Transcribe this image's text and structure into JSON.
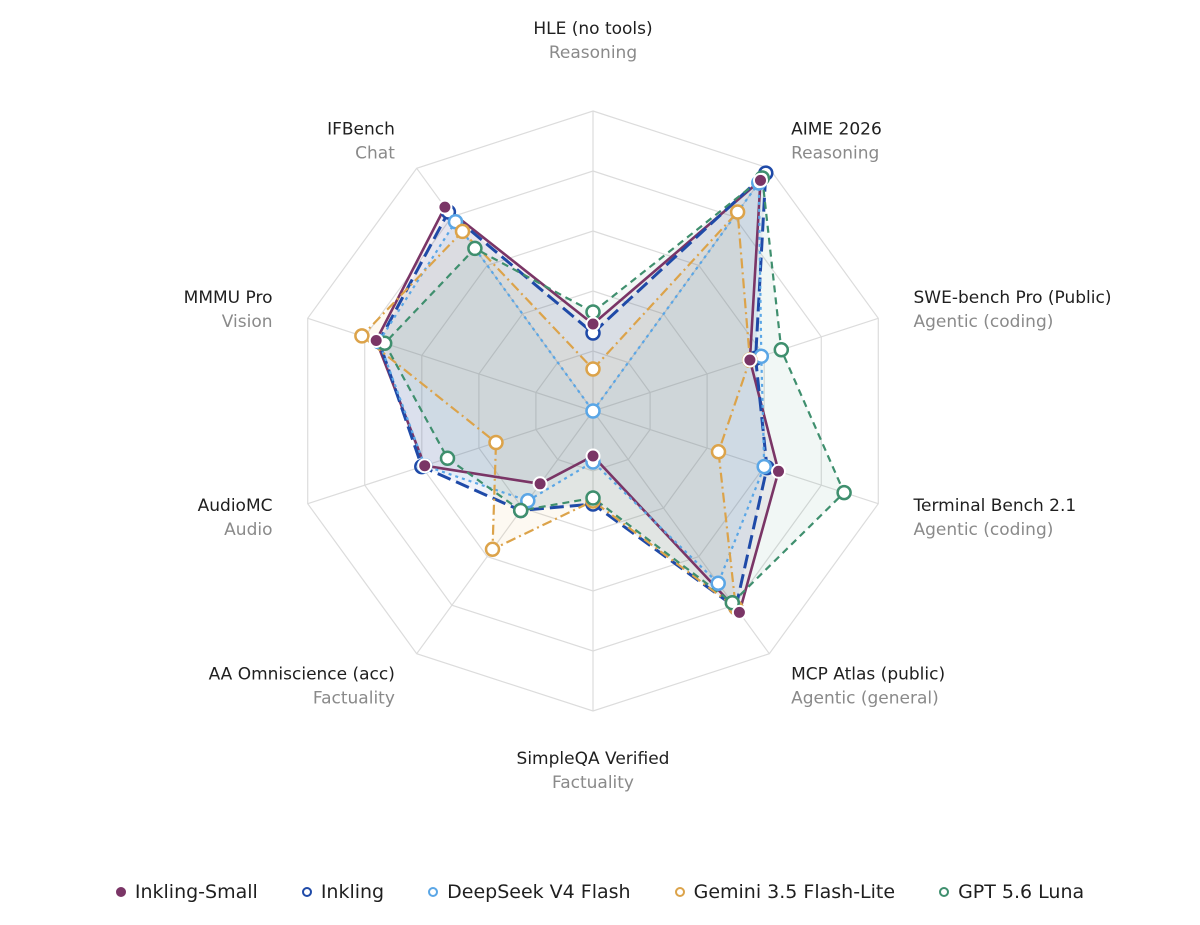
{
  "chart_data": {
    "type": "radar",
    "range": [
      0,
      100
    ],
    "grid": true,
    "legend_position": "bottom",
    "axes": [
      {
        "name": "HLE (no tools)",
        "category": "Reasoning"
      },
      {
        "name": "AIME 2026",
        "category": "Reasoning"
      },
      {
        "name": "SWE-bench Pro (Public)",
        "category": "Agentic (coding)"
      },
      {
        "name": "Terminal Bench 2.1",
        "category": "Agentic (coding)"
      },
      {
        "name": "MCP Atlas (public)",
        "category": "Agentic (general)"
      },
      {
        "name": "SimpleQA Verified",
        "category": "Factuality"
      },
      {
        "name": "AA Omniscience (acc)",
        "category": "Factuality"
      },
      {
        "name": "AudioMC",
        "category": "Audio"
      },
      {
        "name": "MMMU Pro",
        "category": "Vision"
      },
      {
        "name": "IFBench",
        "category": "Chat"
      }
    ],
    "series": [
      {
        "name": "Inkling-Small",
        "color": "#7a3566",
        "style": "solid",
        "marker": "filled",
        "values": [
          29,
          95,
          55,
          65,
          83,
          15,
          30,
          59,
          76,
          84
        ]
      },
      {
        "name": "Inkling",
        "color": "#1f4aa8",
        "style": "longdash",
        "marker": "hollow",
        "values": [
          26,
          98,
          57,
          61,
          81,
          31,
          41,
          60,
          75,
          82
        ]
      },
      {
        "name": "DeepSeek V4 Flash",
        "color": "#5aa6e6",
        "style": "dotted",
        "marker": "hollow",
        "values": [
          0,
          94,
          59,
          60,
          71,
          17,
          37,
          59,
          75,
          78
        ]
      },
      {
        "name": "Gemini 3.5 Flash-Lite",
        "color": "#dca34a",
        "style": "dashdot",
        "marker": "hollow",
        "values": [
          14,
          82,
          55,
          44,
          81,
          30,
          57,
          34,
          81,
          74
        ]
      },
      {
        "name": "GPT 5.6 Luna",
        "color": "#3f8f6e",
        "style": "dashed",
        "marker": "hollow",
        "values": [
          33,
          96,
          66,
          88,
          79,
          29,
          41,
          51,
          73,
          67
        ]
      }
    ]
  }
}
